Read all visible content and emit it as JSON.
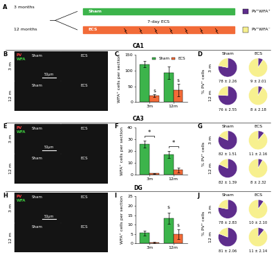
{
  "panel_a": {
    "panel": "A",
    "groups": [
      "3 months",
      "12 months"
    ],
    "bars": [
      {
        "name": "Sham",
        "color": "#3cb44b"
      },
      {
        "name": "ECS",
        "color": "#f26b38"
      }
    ],
    "event_label": "7-day ECS",
    "legend": [
      {
        "name": "PV⁺WFA⁺",
        "color": "#5e2d8c"
      },
      {
        "name": "PV⁺WFA⁻",
        "color": "#f7f08f"
      }
    ]
  },
  "sections": [
    "CA1",
    "CA3",
    "DG"
  ],
  "images": [
    {
      "panel": "B",
      "stains": [
        {
          "name": "PV",
          "color": "#ff4040"
        },
        {
          "name": "WFA",
          "color": "#40d040"
        }
      ],
      "columns": [
        "Sham",
        "ECS"
      ],
      "rows": [
        "3 m",
        "12 m"
      ],
      "scale": "50μm"
    },
    {
      "panel": "E",
      "stains": [
        {
          "name": "PV",
          "color": "#ff4040"
        },
        {
          "name": "WFA",
          "color": "#40d040"
        }
      ],
      "columns": [
        "Sham",
        "ECS"
      ],
      "rows": [
        "3 m",
        "12 m"
      ],
      "scale": "50μm"
    },
    {
      "panel": "H",
      "stains": [
        {
          "name": "PV",
          "color": "#ff4040"
        },
        {
          "name": "WFA",
          "color": "#40d040"
        }
      ],
      "columns": [
        "Sham",
        "ECS"
      ],
      "rows": [
        "3 m",
        "12 m"
      ],
      "scale": "50μm"
    }
  ],
  "chart_data": [
    {
      "panel": "C",
      "type": "bar",
      "categories": [
        "3m",
        "12m"
      ],
      "ylabel": "WFA⁺ cells per section",
      "series": [
        {
          "name": "Sham",
          "color": "#3cb44b",
          "values": [
            120,
            93
          ],
          "errors": [
            10,
            20
          ]
        },
        {
          "name": "ECS",
          "color": "#f26b38",
          "values": [
            20,
            38
          ],
          "errors": [
            5,
            20
          ]
        }
      ],
      "ylim": [
        0,
        150
      ],
      "yticks": [
        0,
        50,
        100,
        150
      ],
      "legend": "upper right",
      "annotations": [
        {
          "text": "$",
          "category": "3m",
          "series": "ECS",
          "y": 30
        },
        {
          "text": "$",
          "category": "12m",
          "series": "ECS",
          "y": 62
        }
      ]
    },
    {
      "panel": "D",
      "type": "pie",
      "ylabel": "% PV⁺ cells",
      "columns": [
        "Sham",
        "ECS"
      ],
      "rows": [
        "3 m",
        "12 m"
      ],
      "total": 100,
      "colors": [
        "#5e2d8c",
        "#f7f08f"
      ],
      "values": [
        [
          78,
          9
        ],
        [
          76,
          8
        ]
      ],
      "value_labels": [
        [
          "78 ± 2.26",
          "9 ± 2.01"
        ],
        [
          "76 ± 2.55",
          "8 ± 2.18"
        ]
      ]
    },
    {
      "panel": "F",
      "type": "bar",
      "categories": [
        "3m",
        "12m"
      ],
      "ylabel": "WFA⁺ cells per section",
      "series": [
        {
          "name": "Sham",
          "color": "#3cb44b",
          "values": [
            26,
            17
          ],
          "errors": [
            3,
            3
          ]
        },
        {
          "name": "ECS",
          "color": "#f26b38",
          "values": [
            1,
            4
          ],
          "errors": [
            0.5,
            2
          ]
        }
      ],
      "ylim": [
        0,
        40
      ],
      "yticks": [
        0,
        10,
        20,
        30,
        40
      ],
      "brackets": [
        {
          "text": "*",
          "category": "3m",
          "y": 33
        },
        {
          "text": "*",
          "category": "12m",
          "y": 24
        }
      ]
    },
    {
      "panel": "G",
      "type": "pie",
      "ylabel": "% PV⁺ cells",
      "columns": [
        "Sham",
        "ECS"
      ],
      "rows": [
        "3 m",
        "12 m"
      ],
      "total": 100,
      "colors": [
        "#5e2d8c",
        "#f7f08f"
      ],
      "values": [
        [
          82,
          11
        ],
        [
          82,
          8
        ]
      ],
      "value_labels": [
        [
          "82 ± 1.51",
          "11 ± 2.16"
        ],
        [
          "82 ± 1.39",
          "8 ± 2.32"
        ]
      ]
    },
    {
      "panel": "I",
      "type": "bar",
      "categories": [
        "3m",
        "12m"
      ],
      "ylabel": "WFA⁺ cells per section",
      "series": [
        {
          "name": "Sham",
          "color": "#3cb44b",
          "values": [
            5.5,
            13.5
          ],
          "errors": [
            1.2,
            3
          ]
        },
        {
          "name": "ECS",
          "color": "#f26b38",
          "values": [
            0.5,
            5
          ],
          "errors": [
            0.3,
            2.5
          ]
        }
      ],
      "ylim": [
        0,
        25
      ],
      "yticks": [
        0,
        5,
        10,
        15,
        20,
        25
      ],
      "annotations": [
        {
          "text": "$",
          "category": "12m",
          "series": "Sham",
          "y": 18
        },
        {
          "text": "$",
          "category": "12m",
          "series": "ECS",
          "y": 8.5
        }
      ]
    },
    {
      "panel": "J",
      "type": "pie",
      "ylabel": "% PV⁺ cells",
      "columns": [
        "Sham",
        "ECS"
      ],
      "rows": [
        "3 m",
        "12 m"
      ],
      "total": 100,
      "colors": [
        "#5e2d8c",
        "#f7f08f"
      ],
      "values": [
        [
          78,
          10
        ],
        [
          81,
          11
        ]
      ],
      "value_labels": [
        [
          "78 ± 2.83",
          "10 ± 2.10"
        ],
        [
          "81 ± 2.06",
          "11 ± 2.14"
        ]
      ]
    }
  ]
}
